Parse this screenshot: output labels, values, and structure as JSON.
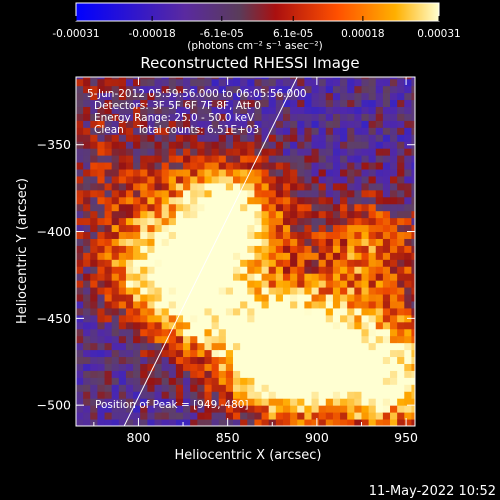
{
  "chart_data": {
    "type": "heatmap",
    "title": "Reconstructed RHESSI Image",
    "xlabel": "Heliocentric X (arcsec)",
    "ylabel": "Heliocentric Y (arcsec)",
    "xlim": [
      765,
      955
    ],
    "ylim": [
      -512,
      -311
    ],
    "x_ticks": [
      800,
      850,
      900,
      950
    ],
    "y_ticks": [
      -350,
      -400,
      -450,
      -500
    ],
    "colorbar": {
      "ticks": [
        "-0.00031",
        "-0.00018",
        "-6.1e-05",
        "6.1e-05",
        "0.00018",
        "0.00031"
      ],
      "tick_values": [
        -0.00031,
        -0.00018,
        -6.1e-05,
        6.1e-05,
        0.00018,
        0.00031
      ],
      "range": [
        -0.00031,
        0.00031
      ],
      "unit_label": "(photons cm⁻² s⁻¹ asec⁻²)",
      "colormap": "blue-purple-red-orange-yellow-white"
    },
    "annotations": [
      "5-Jun-2012 05:59:56.000 to 06:05:56.000",
      "Detectors: 3F 5F 6F 7F 8F, Att 0",
      "Energy Range: 25.0 - 50.0 keV",
      "Clean    Total counts: 6.51E+03"
    ],
    "peak_label": "Position of Peak = [949,-480]",
    "limb_line": {
      "x": [
        792,
        889
      ],
      "y": [
        -512,
        -311
      ]
    },
    "bright_regions": [
      {
        "x": 850,
        "y": -390,
        "level": 0.95
      },
      {
        "x": 875,
        "y": -475,
        "level": 0.9
      },
      {
        "x": 900,
        "y": -470,
        "level": 0.85
      },
      {
        "x": 835,
        "y": -440,
        "level": 0.7
      },
      {
        "x": 805,
        "y": -420,
        "level": 0.6
      },
      {
        "x": 930,
        "y": -410,
        "level": 0.55
      },
      {
        "x": 945,
        "y": -480,
        "level": 0.75
      }
    ]
  },
  "timestamp": "11-May-2022 10:52",
  "colors": {
    "background": "#000000",
    "text": "#ffffff",
    "limb_line": "#ffffff"
  }
}
